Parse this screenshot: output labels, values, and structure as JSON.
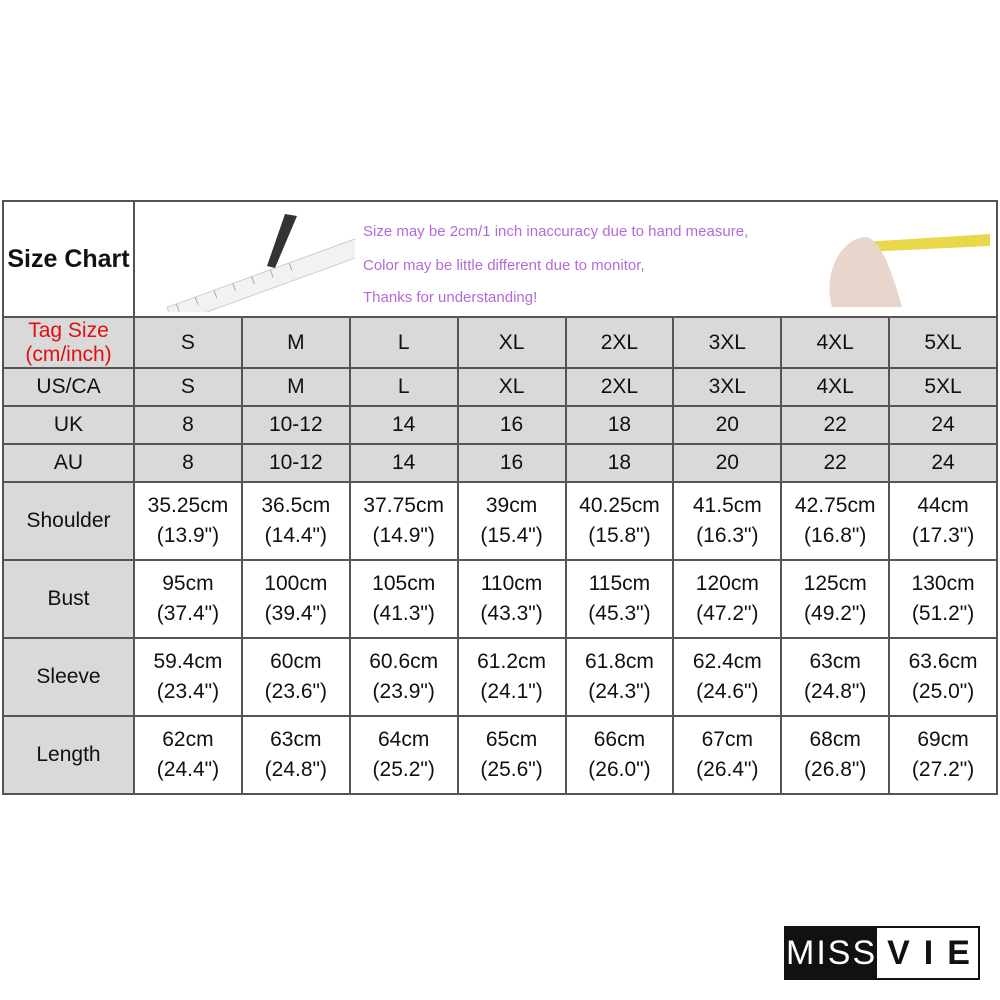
{
  "title": "Size Chart",
  "notes": [
    "Size may be 2cm/1 inch inaccuracy due to hand measure,",
    "Color may be little different due to monitor,",
    "Thanks for understanding!"
  ],
  "colors": {
    "note": "#b46ad8",
    "tag_label": "#e01010",
    "cell_gray": "#d9d9d9"
  },
  "sizes": [
    "S",
    "M",
    "L",
    "XL",
    "2XL",
    "3XL",
    "4XL",
    "5XL"
  ],
  "rows": [
    {
      "label": "Tag Size (cm/inch)",
      "values": [
        "S",
        "M",
        "L",
        "XL",
        "2XL",
        "3XL",
        "4XL",
        "5XL"
      ]
    },
    {
      "label": "US/CA",
      "values": [
        "S",
        "M",
        "L",
        "XL",
        "2XL",
        "3XL",
        "4XL",
        "5XL"
      ]
    },
    {
      "label": "UK",
      "values": [
        "8",
        "10-12",
        "14",
        "16",
        "18",
        "20",
        "22",
        "24"
      ]
    },
    {
      "label": "AU",
      "values": [
        "8",
        "10-12",
        "14",
        "16",
        "18",
        "20",
        "22",
        "24"
      ]
    },
    {
      "label": "Shoulder",
      "values": [
        [
          "35.25cm",
          "(13.9\")"
        ],
        [
          "36.5cm",
          "(14.4\")"
        ],
        [
          "37.75cm",
          "(14.9\")"
        ],
        [
          "39cm",
          "(15.4\")"
        ],
        [
          "40.25cm",
          "(15.8\")"
        ],
        [
          "41.5cm",
          "(16.3\")"
        ],
        [
          "42.75cm",
          "(16.8\")"
        ],
        [
          "44cm",
          "(17.3\")"
        ]
      ]
    },
    {
      "label": "Bust",
      "values": [
        [
          "95cm",
          "(37.4\")"
        ],
        [
          "100cm",
          "(39.4\")"
        ],
        [
          "105cm",
          "(41.3\")"
        ],
        [
          "110cm",
          "(43.3\")"
        ],
        [
          "115cm",
          "(45.3\")"
        ],
        [
          "120cm",
          "(47.2\")"
        ],
        [
          "125cm",
          "(49.2\")"
        ],
        [
          "130cm",
          "(51.2\")"
        ]
      ]
    },
    {
      "label": "Sleeve",
      "values": [
        [
          "59.4cm",
          "(23.4\")"
        ],
        [
          "60cm",
          "(23.6\")"
        ],
        [
          "60.6cm",
          "(23.9\")"
        ],
        [
          "61.2cm",
          "(24.1\")"
        ],
        [
          "61.8cm",
          "(24.3\")"
        ],
        [
          "62.4cm",
          "(24.6\")"
        ],
        [
          "63cm",
          "(24.8\")"
        ],
        [
          "63.6cm",
          "(25.0\")"
        ]
      ]
    },
    {
      "label": "Length",
      "values": [
        [
          "62cm",
          "(24.4\")"
        ],
        [
          "63cm",
          "(24.8\")"
        ],
        [
          "64cm",
          "(25.2\")"
        ],
        [
          "65cm",
          "(25.6\")"
        ],
        [
          "66cm",
          "(26.0\")"
        ],
        [
          "67cm",
          "(26.4\")"
        ],
        [
          "68cm",
          "(26.8\")"
        ],
        [
          "69cm",
          "(27.2\")"
        ]
      ]
    }
  ],
  "logo": {
    "left": "MISS",
    "right": "VIE"
  }
}
